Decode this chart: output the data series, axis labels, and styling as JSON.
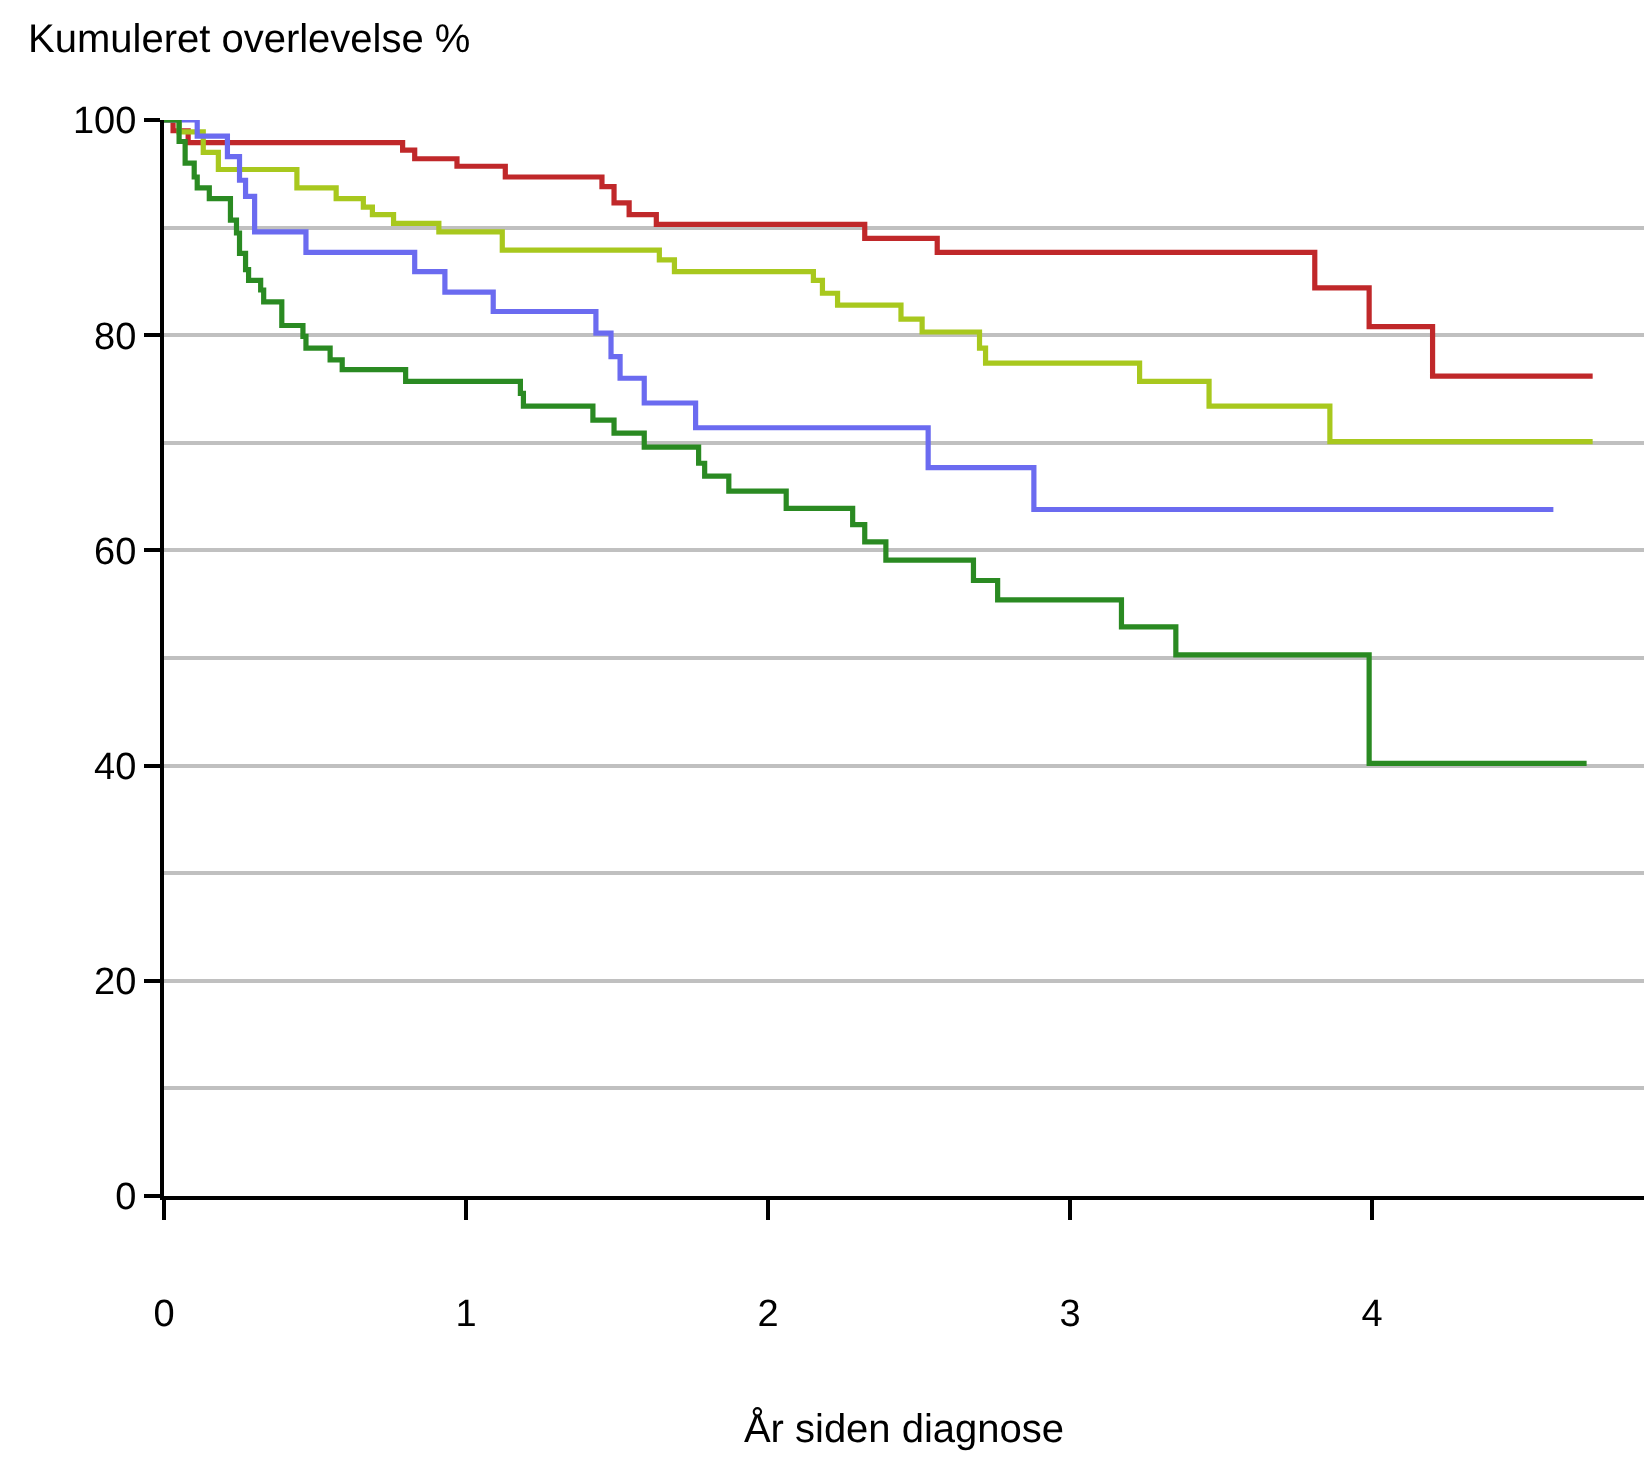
{
  "chart_data": {
    "type": "step",
    "xlabel": "År siden diagnose",
    "ylabel": "Kumuleret overlevelse %",
    "xlim": [
      0,
      4.9
    ],
    "xticks": [
      0,
      1,
      2,
      3,
      4
    ],
    "ylim": [
      0,
      100
    ],
    "yticks": [
      0,
      {
        "value": 10,
        "label": null
      },
      20,
      {
        "value": 30,
        "label": null
      },
      40,
      {
        "value": 50,
        "label": null
      },
      60,
      {
        "value": 70,
        "label": null
      },
      80,
      {
        "value": 90,
        "label": null
      },
      100
    ],
    "grid": "y",
    "line_style": "solid",
    "series": [
      {
        "color": "#c0282a",
        "x": [
          0,
          0.03,
          0.08,
          0.79,
          0.83,
          0.97,
          1.13,
          1.45,
          1.49,
          1.54,
          1.63,
          2.32,
          2.56,
          3.81,
          3.99,
          4.2,
          4.73
        ],
        "values": [
          100,
          99,
          97.9,
          97.2,
          96.4,
          95.7,
          94.7,
          93.8,
          92.3,
          91.2,
          90.3,
          89.0,
          87.7,
          84.4,
          80.8,
          76.2,
          76.2
        ]
      },
      {
        "color": "#a8c81e",
        "x": [
          0,
          0.05,
          0.13,
          0.18,
          0.44,
          0.57,
          0.66,
          0.69,
          0.76,
          0.91,
          1.12,
          1.64,
          1.69,
          2.15,
          2.18,
          2.23,
          2.44,
          2.51,
          2.7,
          2.72,
          3.23,
          3.46,
          3.86,
          4.73
        ],
        "values": [
          100,
          98.9,
          97.0,
          95.4,
          93.7,
          92.7,
          91.9,
          91.2,
          90.4,
          89.6,
          87.9,
          87.0,
          85.9,
          85.1,
          83.9,
          82.8,
          81.5,
          80.3,
          78.8,
          77.4,
          75.7,
          73.4,
          70.1,
          70.1
        ]
      },
      {
        "color": "#6b6bf0",
        "x": [
          0,
          0.11,
          0.21,
          0.25,
          0.27,
          0.3,
          0.47,
          0.83,
          0.93,
          1.09,
          1.43,
          1.48,
          1.51,
          1.59,
          1.76,
          2.53,
          2.88,
          4.6
        ],
        "values": [
          100,
          98.5,
          96.6,
          94.4,
          92.9,
          89.6,
          87.7,
          85.9,
          84.0,
          82.2,
          80.2,
          78.0,
          76.0,
          73.7,
          71.4,
          67.7,
          63.8,
          63.8
        ]
      },
      {
        "color": "#2a8a22",
        "x": [
          0,
          0.05,
          0.07,
          0.1,
          0.11,
          0.15,
          0.22,
          0.24,
          0.25,
          0.27,
          0.28,
          0.32,
          0.33,
          0.39,
          0.46,
          0.47,
          0.55,
          0.59,
          0.8,
          1.18,
          1.19,
          1.42,
          1.49,
          1.59,
          1.77,
          1.79,
          1.87,
          2.06,
          2.28,
          2.32,
          2.39,
          2.68,
          2.76,
          3.17,
          3.35,
          3.99,
          4.71
        ],
        "values": [
          100,
          98,
          96.0,
          94.7,
          93.7,
          92.7,
          90.7,
          89.5,
          87.6,
          86.1,
          85.1,
          84.2,
          83.1,
          80.9,
          79.9,
          78.8,
          77.7,
          76.8,
          75.7,
          74.6,
          73.4,
          72.1,
          70.9,
          69.6,
          68.1,
          66.9,
          65.5,
          63.9,
          62.4,
          60.8,
          59.1,
          57.2,
          55.4,
          52.9,
          50.3,
          40.2,
          40.2
        ]
      }
    ]
  }
}
